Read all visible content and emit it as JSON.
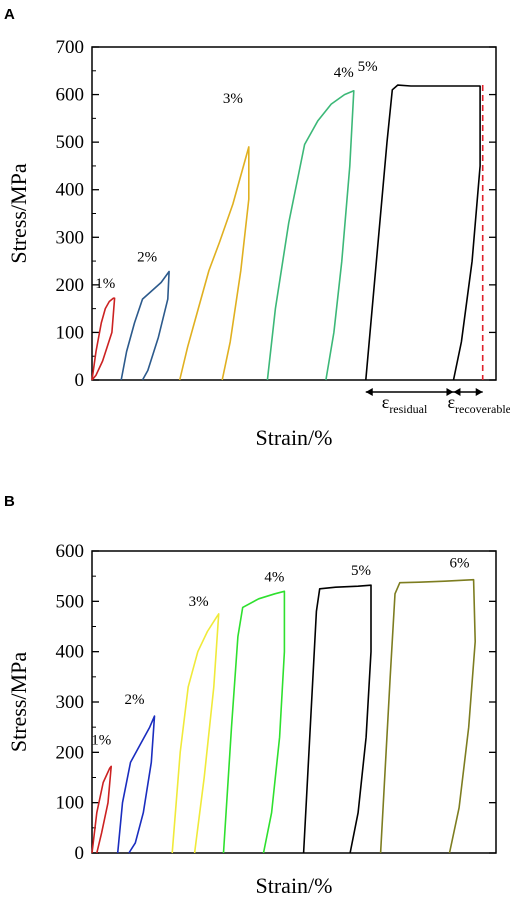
{
  "chart_data": [
    {
      "type": "line",
      "panel_label": "A",
      "xlabel": "Strain/%",
      "ylabel": "Stress/MPa",
      "ylim": [
        0,
        700
      ],
      "yticks": [
        0,
        100,
        200,
        300,
        400,
        500,
        600,
        700
      ],
      "grid": false,
      "series": [
        {
          "label": "1%",
          "color": "#cc2222",
          "x": [
            0.0,
            0.15,
            0.35,
            0.5,
            0.65,
            0.8,
            0.85,
            0.75,
            0.4,
            0.15,
            0.0
          ],
          "y": [
            0,
            60,
            120,
            150,
            165,
            172,
            172,
            100,
            40,
            10,
            0
          ]
        },
        {
          "label": "2%",
          "color": "#2c5a8c",
          "x": [
            1.1,
            1.3,
            1.6,
            1.9,
            2.2,
            2.6,
            2.9,
            2.85,
            2.5,
            2.1,
            1.9
          ],
          "y": [
            0,
            60,
            120,
            170,
            185,
            205,
            228,
            170,
            90,
            20,
            0
          ]
        },
        {
          "label": "3%",
          "color": "#e0b020",
          "x": [
            3.3,
            3.6,
            4.0,
            4.4,
            4.8,
            5.3,
            5.9,
            5.9,
            5.6,
            5.2,
            4.9
          ],
          "y": [
            0,
            70,
            150,
            230,
            290,
            370,
            490,
            380,
            230,
            80,
            0
          ]
        },
        {
          "label": "4%",
          "color": "#3cb878",
          "x": [
            6.6,
            6.9,
            7.4,
            8.0,
            8.5,
            9.0,
            9.5,
            9.85,
            9.7,
            9.4,
            9.1,
            8.8
          ],
          "y": [
            0,
            150,
            330,
            495,
            545,
            580,
            600,
            608,
            450,
            250,
            100,
            0
          ]
        },
        {
          "label": "5%",
          "color": "#000000",
          "x": [
            10.3,
            10.7,
            11.1,
            11.3,
            11.5,
            12.0,
            13.5,
            14.6,
            14.6,
            14.3,
            13.9,
            13.6
          ],
          "y": [
            0,
            250,
            500,
            610,
            620,
            618,
            618,
            618,
            450,
            250,
            80,
            0
          ]
        }
      ],
      "reference_line": {
        "style": "dashed",
        "color": "#e0202a",
        "x": 14.7
      },
      "annotations": [
        {
          "symbol": "ε",
          "subscript": "residual"
        },
        {
          "symbol": "ε",
          "subscript": "recoverable"
        }
      ]
    },
    {
      "type": "line",
      "panel_label": "B",
      "xlabel": "Strain/%",
      "ylabel": "Stress/MPa",
      "ylim": [
        0,
        600
      ],
      "yticks": [
        0,
        100,
        200,
        300,
        400,
        500,
        600
      ],
      "grid": false,
      "series": [
        {
          "label": "1%",
          "color": "#cc2222",
          "x": [
            0.0,
            0.15,
            0.35,
            0.55,
            0.6,
            0.5,
            0.3,
            0.15
          ],
          "y": [
            0,
            80,
            140,
            168,
            172,
            100,
            40,
            0
          ]
        },
        {
          "label": "2%",
          "color": "#1a2dbf",
          "x": [
            0.8,
            0.95,
            1.2,
            1.5,
            1.8,
            1.95,
            1.85,
            1.6,
            1.35,
            1.15
          ],
          "y": [
            0,
            100,
            180,
            215,
            250,
            272,
            180,
            80,
            20,
            0
          ]
        },
        {
          "label": "3%",
          "color": "#f0ea3a",
          "x": [
            2.5,
            2.75,
            3.0,
            3.3,
            3.6,
            3.9,
            3.95,
            3.8,
            3.5,
            3.2
          ],
          "y": [
            0,
            200,
            330,
            400,
            440,
            470,
            475,
            330,
            150,
            0
          ]
        },
        {
          "label": "4%",
          "color": "#2ee02e",
          "x": [
            4.1,
            4.35,
            4.55,
            4.7,
            5.2,
            5.7,
            6.0,
            6.0,
            5.85,
            5.6,
            5.35
          ],
          "y": [
            0,
            250,
            430,
            488,
            505,
            515,
            520,
            400,
            230,
            80,
            0
          ]
        },
        {
          "label": "5%",
          "color": "#000000",
          "x": [
            6.6,
            6.85,
            7.0,
            7.1,
            7.6,
            8.3,
            8.7,
            8.7,
            8.55,
            8.3,
            8.05
          ],
          "y": [
            0,
            300,
            480,
            525,
            528,
            530,
            532,
            400,
            230,
            80,
            0
          ]
        },
        {
          "label": "6%",
          "color": "#7d7d20",
          "x": [
            9.0,
            9.3,
            9.45,
            9.6,
            10.2,
            11.0,
            11.9,
            11.95,
            11.75,
            11.45,
            11.15
          ],
          "y": [
            0,
            350,
            515,
            537,
            538,
            540,
            543,
            420,
            250,
            90,
            0
          ]
        }
      ]
    }
  ]
}
